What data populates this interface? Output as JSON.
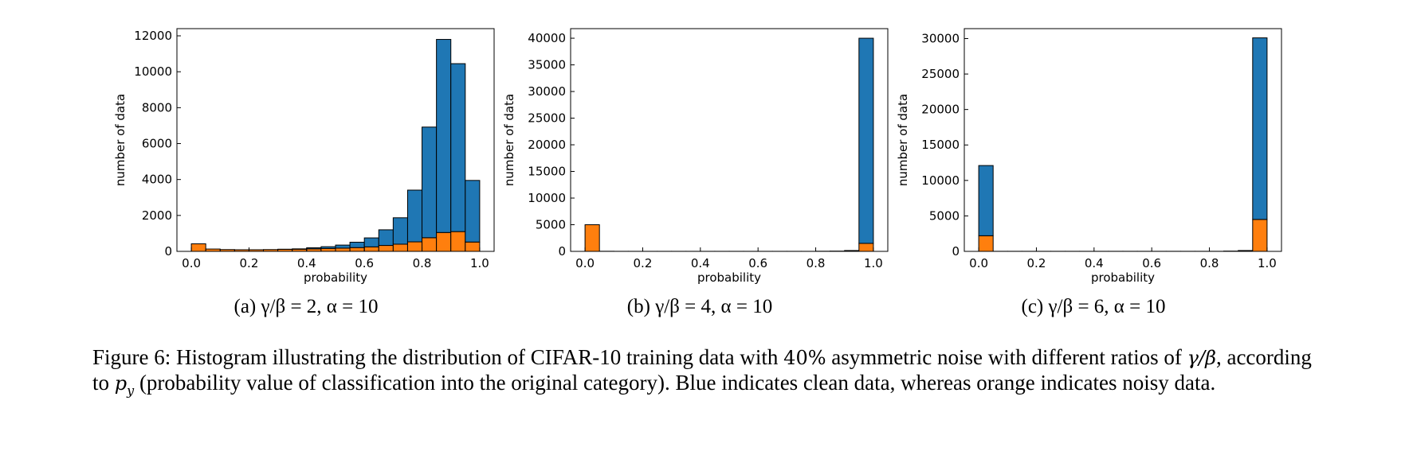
{
  "colors": {
    "clean": "#1f77b4",
    "noisy": "#ff7f0e",
    "edge": "#000000"
  },
  "chart_data": [
    {
      "type": "bar",
      "stacked": true,
      "xlabel": "probability",
      "ylabel": "number of data",
      "xlim": [
        -0.05,
        1.05
      ],
      "ylim": [
        0,
        12400
      ],
      "xticks": [
        "0.0",
        "0.2",
        "0.4",
        "0.6",
        "0.8",
        "1.0"
      ],
      "yticks": [
        "0",
        "2000",
        "4000",
        "6000",
        "8000",
        "10000",
        "12000"
      ],
      "bin_width": 0.05,
      "bin_starts": [
        0,
        0.05,
        0.1,
        0.15,
        0.2,
        0.25,
        0.3,
        0.35,
        0.4,
        0.45,
        0.5,
        0.55,
        0.6,
        0.65,
        0.7,
        0.75,
        0.8,
        0.85,
        0.9,
        0.95
      ],
      "series": [
        {
          "name": "noisy",
          "values": [
            420,
            130,
            100,
            90,
            90,
            100,
            110,
            120,
            140,
            160,
            180,
            210,
            250,
            330,
            400,
            530,
            760,
            1050,
            1100,
            520
          ]
        },
        {
          "name": "clean",
          "values": [
            0,
            0,
            0,
            0,
            0,
            0,
            10,
            20,
            60,
            100,
            170,
            300,
            500,
            870,
            1470,
            2880,
            6160,
            10750,
            9350,
            3430
          ]
        }
      ],
      "caption": "(a) γ/β = 2, α = 10"
    },
    {
      "type": "bar",
      "stacked": true,
      "xlabel": "probability",
      "ylabel": "number of data",
      "xlim": [
        -0.05,
        1.05
      ],
      "ylim": [
        0,
        41800
      ],
      "xticks": [
        "0.0",
        "0.2",
        "0.4",
        "0.6",
        "0.8",
        "1.0"
      ],
      "yticks": [
        "0",
        "5000",
        "10000",
        "15000",
        "20000",
        "25000",
        "30000",
        "35000",
        "40000"
      ],
      "bin_width": 0.05,
      "bin_starts": [
        0,
        0.05,
        0.1,
        0.15,
        0.2,
        0.25,
        0.3,
        0.35,
        0.4,
        0.45,
        0.5,
        0.55,
        0.6,
        0.65,
        0.7,
        0.75,
        0.8,
        0.85,
        0.9,
        0.95
      ],
      "series": [
        {
          "name": "noisy",
          "values": [
            5000,
            20,
            10,
            10,
            10,
            10,
            10,
            10,
            10,
            10,
            10,
            10,
            10,
            10,
            10,
            10,
            10,
            20,
            60,
            1500
          ]
        },
        {
          "name": "clean",
          "values": [
            0,
            0,
            0,
            0,
            0,
            0,
            0,
            0,
            0,
            0,
            0,
            0,
            0,
            0,
            0,
            0,
            10,
            20,
            100,
            38500
          ]
        }
      ],
      "caption": "(b) γ/β = 4, α = 10"
    },
    {
      "type": "bar",
      "stacked": true,
      "xlabel": "probability",
      "ylabel": "number of data",
      "xlim": [
        -0.05,
        1.05
      ],
      "ylim": [
        0,
        31400
      ],
      "xticks": [
        "0.0",
        "0.2",
        "0.4",
        "0.6",
        "0.8",
        "1.0"
      ],
      "yticks": [
        "0",
        "5000",
        "10000",
        "15000",
        "20000",
        "25000",
        "30000"
      ],
      "bin_width": 0.05,
      "bin_starts": [
        0,
        0.05,
        0.1,
        0.15,
        0.2,
        0.25,
        0.3,
        0.35,
        0.4,
        0.45,
        0.5,
        0.55,
        0.6,
        0.65,
        0.7,
        0.75,
        0.8,
        0.85,
        0.9,
        0.95
      ],
      "series": [
        {
          "name": "noisy",
          "values": [
            2200,
            10,
            10,
            10,
            10,
            10,
            10,
            10,
            10,
            10,
            10,
            10,
            10,
            10,
            10,
            10,
            10,
            20,
            40,
            4500
          ]
        },
        {
          "name": "clean",
          "values": [
            9900,
            0,
            0,
            0,
            0,
            0,
            0,
            0,
            0,
            0,
            0,
            0,
            0,
            0,
            0,
            0,
            0,
            10,
            80,
            25600
          ]
        }
      ],
      "caption": "(c) γ/β = 6, α = 10"
    }
  ],
  "figure_caption": {
    "prefix": "Figure 6: Histogram illustrating the distribution of CIFAR-10 training data with ",
    "noise_pct": "40%",
    "middle": " asymmetric noise with different ratios of ",
    "ratio": "γ/β",
    "after_ratio": ", according to ",
    "p": "p",
    "p_sub": "y",
    "suffix": " (probability value of classification into the original category). Blue indicates clean data, whereas orange indicates noisy data."
  }
}
